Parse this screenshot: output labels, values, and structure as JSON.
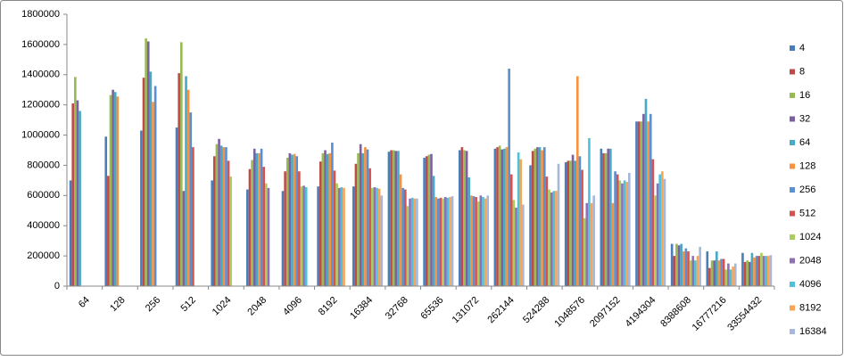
{
  "chart_data": {
    "type": "bar",
    "categories": [
      "64",
      "128",
      "256",
      "512",
      "1024",
      "2048",
      "4096",
      "8192",
      "16384",
      "32768",
      "65536",
      "131072",
      "262144",
      "524288",
      "1048576",
      "2097152",
      "4194304",
      "8388608",
      "16777216",
      "33554432"
    ],
    "ylim": [
      0,
      1800000
    ],
    "yticks": [
      0,
      200000,
      400000,
      600000,
      800000,
      1000000,
      1200000,
      1400000,
      1600000,
      1800000
    ],
    "grid": false,
    "legend": "right",
    "series": [
      {
        "name": "4",
        "color": "#4a7ebb",
        "values": [
          700000,
          990000,
          1030000,
          1050000,
          700000,
          640000,
          630000,
          660000,
          660000,
          890000,
          850000,
          900000,
          910000,
          800000,
          820000,
          910000,
          1090000,
          280000,
          230000,
          220000
        ]
      },
      {
        "name": "8",
        "color": "#be4b48",
        "values": [
          1210000,
          730000,
          1380000,
          1410000,
          860000,
          775000,
          760000,
          825000,
          810000,
          900000,
          860000,
          920000,
          920000,
          895000,
          830000,
          880000,
          1090000,
          200000,
          120000,
          160000
        ]
      },
      {
        "name": "16",
        "color": "#98b954",
        "values": [
          1385000,
          1265000,
          1640000,
          1615000,
          940000,
          835000,
          850000,
          880000,
          880000,
          900000,
          870000,
          900000,
          930000,
          910000,
          830000,
          880000,
          1090000,
          280000,
          170000,
          170000
        ]
      },
      {
        "name": "32",
        "color": "#7d60a0",
        "values": [
          1230000,
          1300000,
          1620000,
          630000,
          975000,
          910000,
          880000,
          900000,
          940000,
          895000,
          875000,
          895000,
          905000,
          920000,
          870000,
          910000,
          1140000,
          270000,
          170000,
          160000
        ]
      },
      {
        "name": "64",
        "color": "#46aac5",
        "values": [
          1160000,
          1285000,
          1420000,
          1390000,
          930000,
          880000,
          870000,
          875000,
          880000,
          895000,
          730000,
          720000,
          910000,
          920000,
          830000,
          910000,
          1240000,
          280000,
          230000,
          220000
        ]
      },
      {
        "name": "128",
        "color": "#f69240",
        "values": [
          null,
          1255000,
          1220000,
          1300000,
          920000,
          880000,
          875000,
          880000,
          920000,
          740000,
          590000,
          600000,
          920000,
          900000,
          1390000,
          550000,
          1090000,
          230000,
          170000,
          190000
        ]
      },
      {
        "name": "256",
        "color": "#5b8fd0",
        "values": [
          null,
          null,
          1325000,
          1150000,
          920000,
          910000,
          860000,
          950000,
          905000,
          650000,
          580000,
          595000,
          1440000,
          920000,
          860000,
          760000,
          1140000,
          250000,
          180000,
          200000
        ]
      },
      {
        "name": "512",
        "color": "#d2534f",
        "values": [
          null,
          null,
          null,
          920000,
          830000,
          790000,
          760000,
          765000,
          780000,
          640000,
          585000,
          590000,
          740000,
          725000,
          770000,
          740000,
          840000,
          230000,
          180000,
          200000
        ]
      },
      {
        "name": "1024",
        "color": "#a9cd5f",
        "values": [
          null,
          null,
          null,
          null,
          725000,
          680000,
          660000,
          680000,
          650000,
          530000,
          580000,
          560000,
          570000,
          640000,
          450000,
          700000,
          600000,
          170000,
          110000,
          220000
        ]
      },
      {
        "name": "2048",
        "color": "#8f6fb6",
        "values": [
          null,
          null,
          null,
          null,
          null,
          650000,
          665000,
          650000,
          655000,
          580000,
          590000,
          600000,
          520000,
          620000,
          550000,
          680000,
          680000,
          200000,
          150000,
          200000
        ]
      },
      {
        "name": "4096",
        "color": "#4fc1db",
        "values": [
          null,
          null,
          null,
          null,
          null,
          null,
          655000,
          655000,
          650000,
          585000,
          585000,
          590000,
          885000,
          630000,
          980000,
          700000,
          740000,
          170000,
          110000,
          200000
        ]
      },
      {
        "name": "8192",
        "color": "#f9a557",
        "values": [
          null,
          null,
          null,
          null,
          null,
          null,
          null,
          650000,
          645000,
          580000,
          590000,
          580000,
          840000,
          630000,
          550000,
          690000,
          760000,
          200000,
          130000,
          200000
        ]
      },
      {
        "name": "16384",
        "color": "#a7b7dc",
        "values": [
          null,
          null,
          null,
          null,
          null,
          null,
          null,
          null,
          600000,
          580000,
          595000,
          600000,
          540000,
          810000,
          600000,
          750000,
          710000,
          260000,
          150000,
          205000
        ]
      }
    ]
  }
}
